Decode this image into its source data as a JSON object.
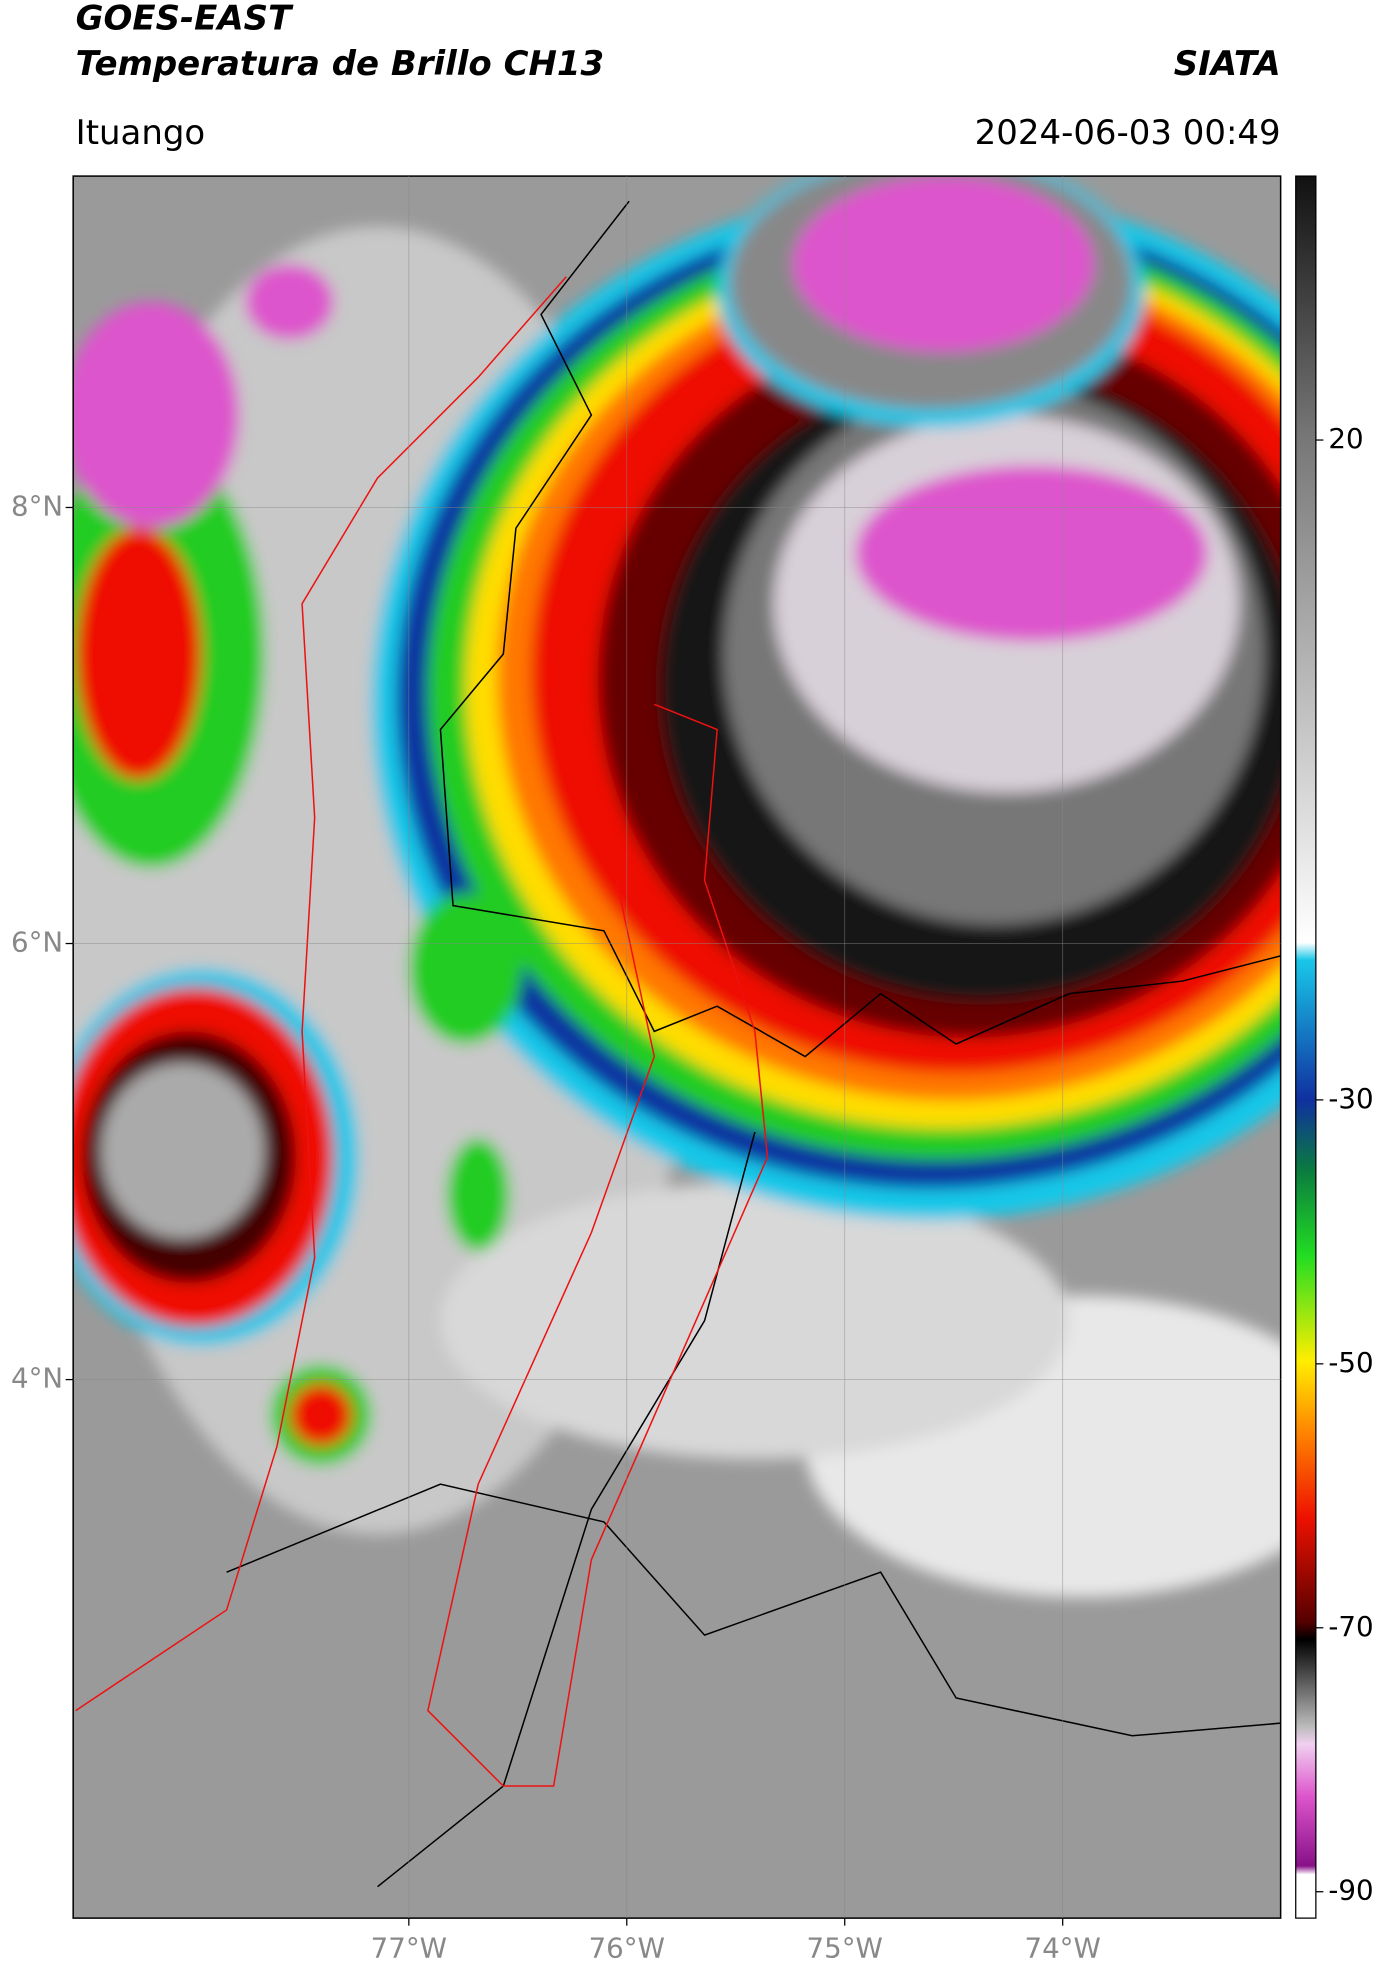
{
  "header": {
    "title": "GOES-EAST",
    "subtitle": "Temperatura de Brillo CH13",
    "source": "SIATA",
    "region": "Ituango",
    "timestamp": "2024-06-03 00:49"
  },
  "map": {
    "xlim": [
      -78.54,
      -73.0
    ],
    "ylim": [
      1.53,
      9.52
    ],
    "xticks": [
      {
        "value": -77,
        "label": "77°W"
      },
      {
        "value": -76,
        "label": "76°W"
      },
      {
        "value": -75,
        "label": "75°W"
      },
      {
        "value": -74,
        "label": "74°W"
      }
    ],
    "yticks": [
      {
        "value": 8,
        "label": "8°N"
      },
      {
        "value": 6,
        "label": "6°N"
      },
      {
        "value": 4,
        "label": "4°N"
      }
    ],
    "grid": true
  },
  "colorbar": {
    "lim": [
      40,
      -92
    ],
    "ticks": [
      20,
      -30,
      -50,
      -70,
      -90
    ]
  }
}
